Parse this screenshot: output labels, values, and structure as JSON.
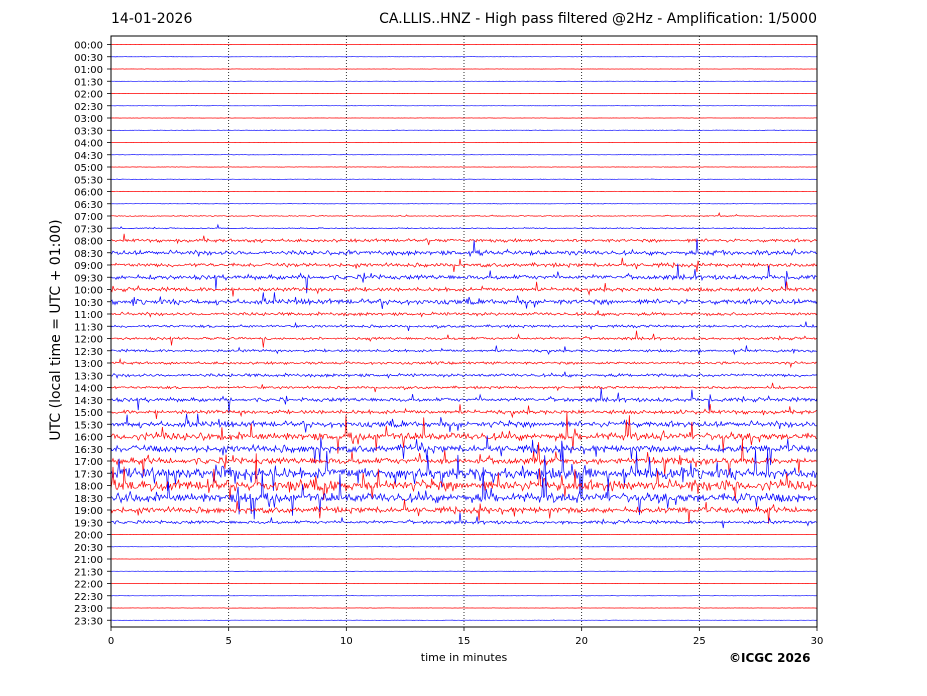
{
  "header": {
    "date": "14-01-2026",
    "title": "CA.LLIS..HNZ - High pass filtered @2Hz - Amplification: 1/5000"
  },
  "axes": {
    "ylabel": "UTC (local time = UTC + 01:00)",
    "xlabel": "time in minutes"
  },
  "credit": "©ICGC 2026",
  "colors": {
    "trace_a": "#ff0000",
    "trace_b": "#0000ff",
    "grid": "#000000"
  },
  "chart_data": {
    "type": "line",
    "x": {
      "min": 0,
      "max": 30,
      "ticks": [
        0,
        5,
        10,
        15,
        20,
        25,
        30
      ],
      "unit": "minutes"
    },
    "y_labels": [
      "00:00",
      "00:30",
      "01:00",
      "01:30",
      "02:00",
      "02:30",
      "03:00",
      "03:30",
      "04:00",
      "04:30",
      "05:00",
      "05:30",
      "06:00",
      "06:30",
      "07:00",
      "07:30",
      "08:00",
      "08:30",
      "09:00",
      "09:30",
      "10:00",
      "10:30",
      "11:00",
      "11:30",
      "12:00",
      "12:30",
      "13:00",
      "13:30",
      "14:00",
      "14:30",
      "15:00",
      "15:30",
      "16:00",
      "16:30",
      "17:00",
      "17:30",
      "18:00",
      "18:30",
      "19:00",
      "19:30",
      "20:00",
      "20:30",
      "21:00",
      "21:30",
      "22:00",
      "22:30",
      "23:00",
      "23:30"
    ],
    "vertical_grid": [
      5,
      10,
      15,
      20,
      25
    ],
    "trace_colors_alternate": [
      "red",
      "blue"
    ],
    "activity_level": [
      0.02,
      0.02,
      0.02,
      0.02,
      0.02,
      0.02,
      0.02,
      0.03,
      0.02,
      0.03,
      0.03,
      0.03,
      0.04,
      0.03,
      0.08,
      0.08,
      0.25,
      0.35,
      0.3,
      0.35,
      0.3,
      0.4,
      0.25,
      0.2,
      0.2,
      0.2,
      0.2,
      0.25,
      0.2,
      0.3,
      0.3,
      0.45,
      0.6,
      0.55,
      0.5,
      0.85,
      0.8,
      0.75,
      0.45,
      0.25,
      0.03,
      0.02,
      0.02,
      0.02,
      0.02,
      0.02,
      0.02,
      0.02
    ]
  }
}
